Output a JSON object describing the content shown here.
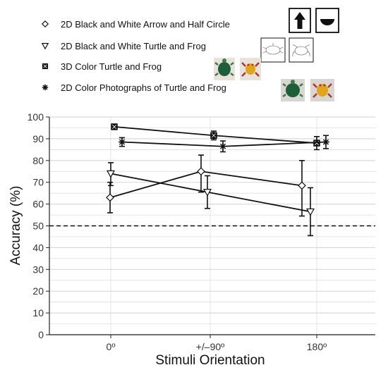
{
  "chart_data": {
    "type": "line",
    "xlabel": "Stimuli Orientation",
    "ylabel": "Accuracy (%)",
    "categories": [
      "0º",
      "+/–90º",
      "180º"
    ],
    "ylim": [
      0,
      100
    ],
    "yticks": [
      0,
      10,
      20,
      30,
      40,
      50,
      60,
      70,
      80,
      90,
      100
    ],
    "grid": true,
    "legend_position": "top",
    "reference_line": {
      "y": 50,
      "style": "dashed"
    },
    "series": [
      {
        "name": "2D Black and White Arrow and Half Circle",
        "marker": "diamond",
        "values": [
          63,
          75,
          68.5
        ],
        "error_low": [
          56,
          65.5,
          54.5
        ],
        "error_high": [
          70,
          82.5,
          80
        ]
      },
      {
        "name": "2D Black and White Turtle and Frog",
        "marker": "triangle-down",
        "values": [
          74,
          65.5,
          56.5
        ],
        "error_low": [
          68.5,
          58,
          45.5
        ],
        "error_high": [
          79,
          73,
          67.5
        ]
      },
      {
        "name": "3D Color Turtle and Frog",
        "marker": "square-x",
        "values": [
          95.5,
          91.5,
          88
        ],
        "error_low": [
          95.5,
          89.5,
          85
        ],
        "error_high": [
          95.5,
          93.5,
          91
        ]
      },
      {
        "name": "2D Color Photographs of Turtle and Frog",
        "marker": "asterisk",
        "values": [
          88.5,
          86.5,
          88.5
        ],
        "error_low": [
          86.5,
          84,
          85.5
        ],
        "error_high": [
          90.5,
          89,
          91.5
        ]
      }
    ]
  },
  "colors": {
    "grid": "#d9d9d9",
    "axis": "#222222",
    "line": "#111111",
    "turtle_shell": "#1f5e3a",
    "turtle_body": "#3f7a45",
    "frog_yellow": "#e0a51a",
    "frog_red": "#b8322a",
    "photo_bg": "#e7e3dc"
  },
  "legend_icons": [
    [
      "arrow-up-icon",
      "half-circle-icon"
    ],
    [
      "turtle-outline-icon",
      "frog-outline-icon"
    ],
    [
      "turtle-3d-icon",
      "frog-3d-icon"
    ],
    [
      "turtle-photo-icon",
      "frog-photo-icon"
    ]
  ]
}
